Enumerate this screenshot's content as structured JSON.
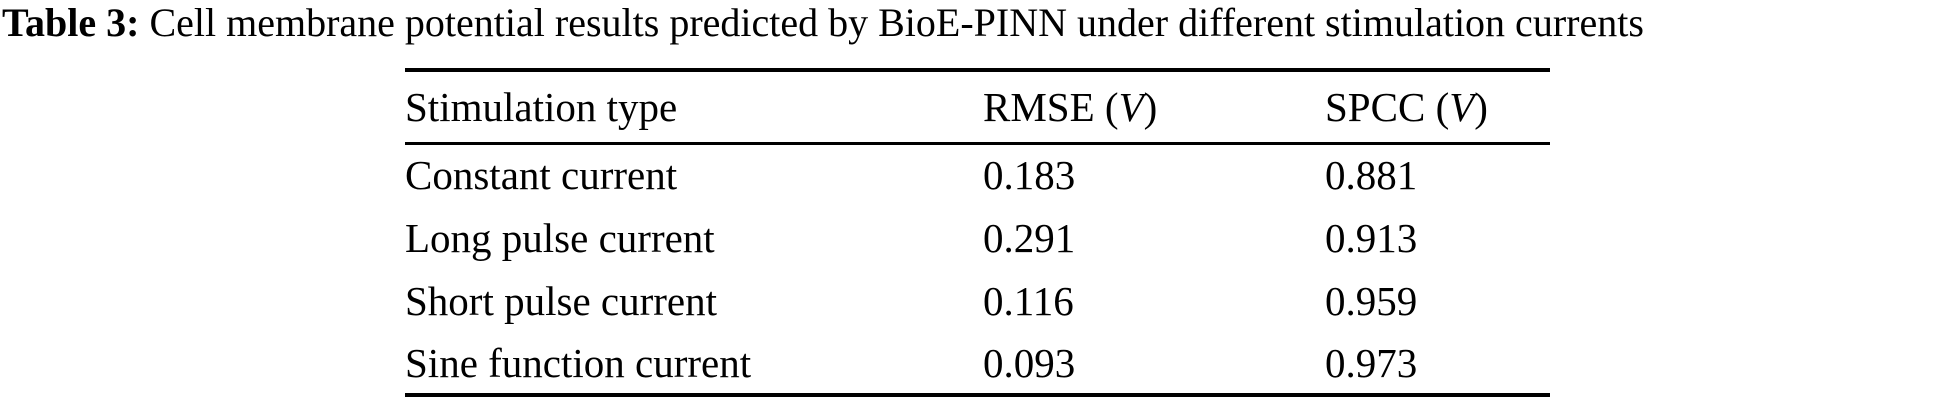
{
  "page": {
    "background_color": "#ffffff",
    "text_color": "#000000"
  },
  "caption": {
    "label": "Table 3:",
    "text": " Cell membrane potential results predicted by BioE-PINN under different stimulation currents"
  },
  "table": {
    "headers": [
      {
        "text": "Stimulation type",
        "open": "",
        "var": "",
        "close": ""
      },
      {
        "text": "RMSE",
        "open": " (",
        "var": "V",
        "close": ")"
      },
      {
        "text": "SPCC",
        "open": " (",
        "var": "V",
        "close": ")"
      }
    ],
    "rows": [
      {
        "stimulation_type": "Constant current",
        "rmse": "0.183",
        "spcc": "0.881"
      },
      {
        "stimulation_type": "Long pulse current",
        "rmse": "0.291",
        "spcc": "0.913"
      },
      {
        "stimulation_type": "Short pulse current",
        "rmse": "0.116",
        "spcc": "0.959"
      },
      {
        "stimulation_type": "Sine function current",
        "rmse": "0.093",
        "spcc": "0.973"
      }
    ]
  }
}
